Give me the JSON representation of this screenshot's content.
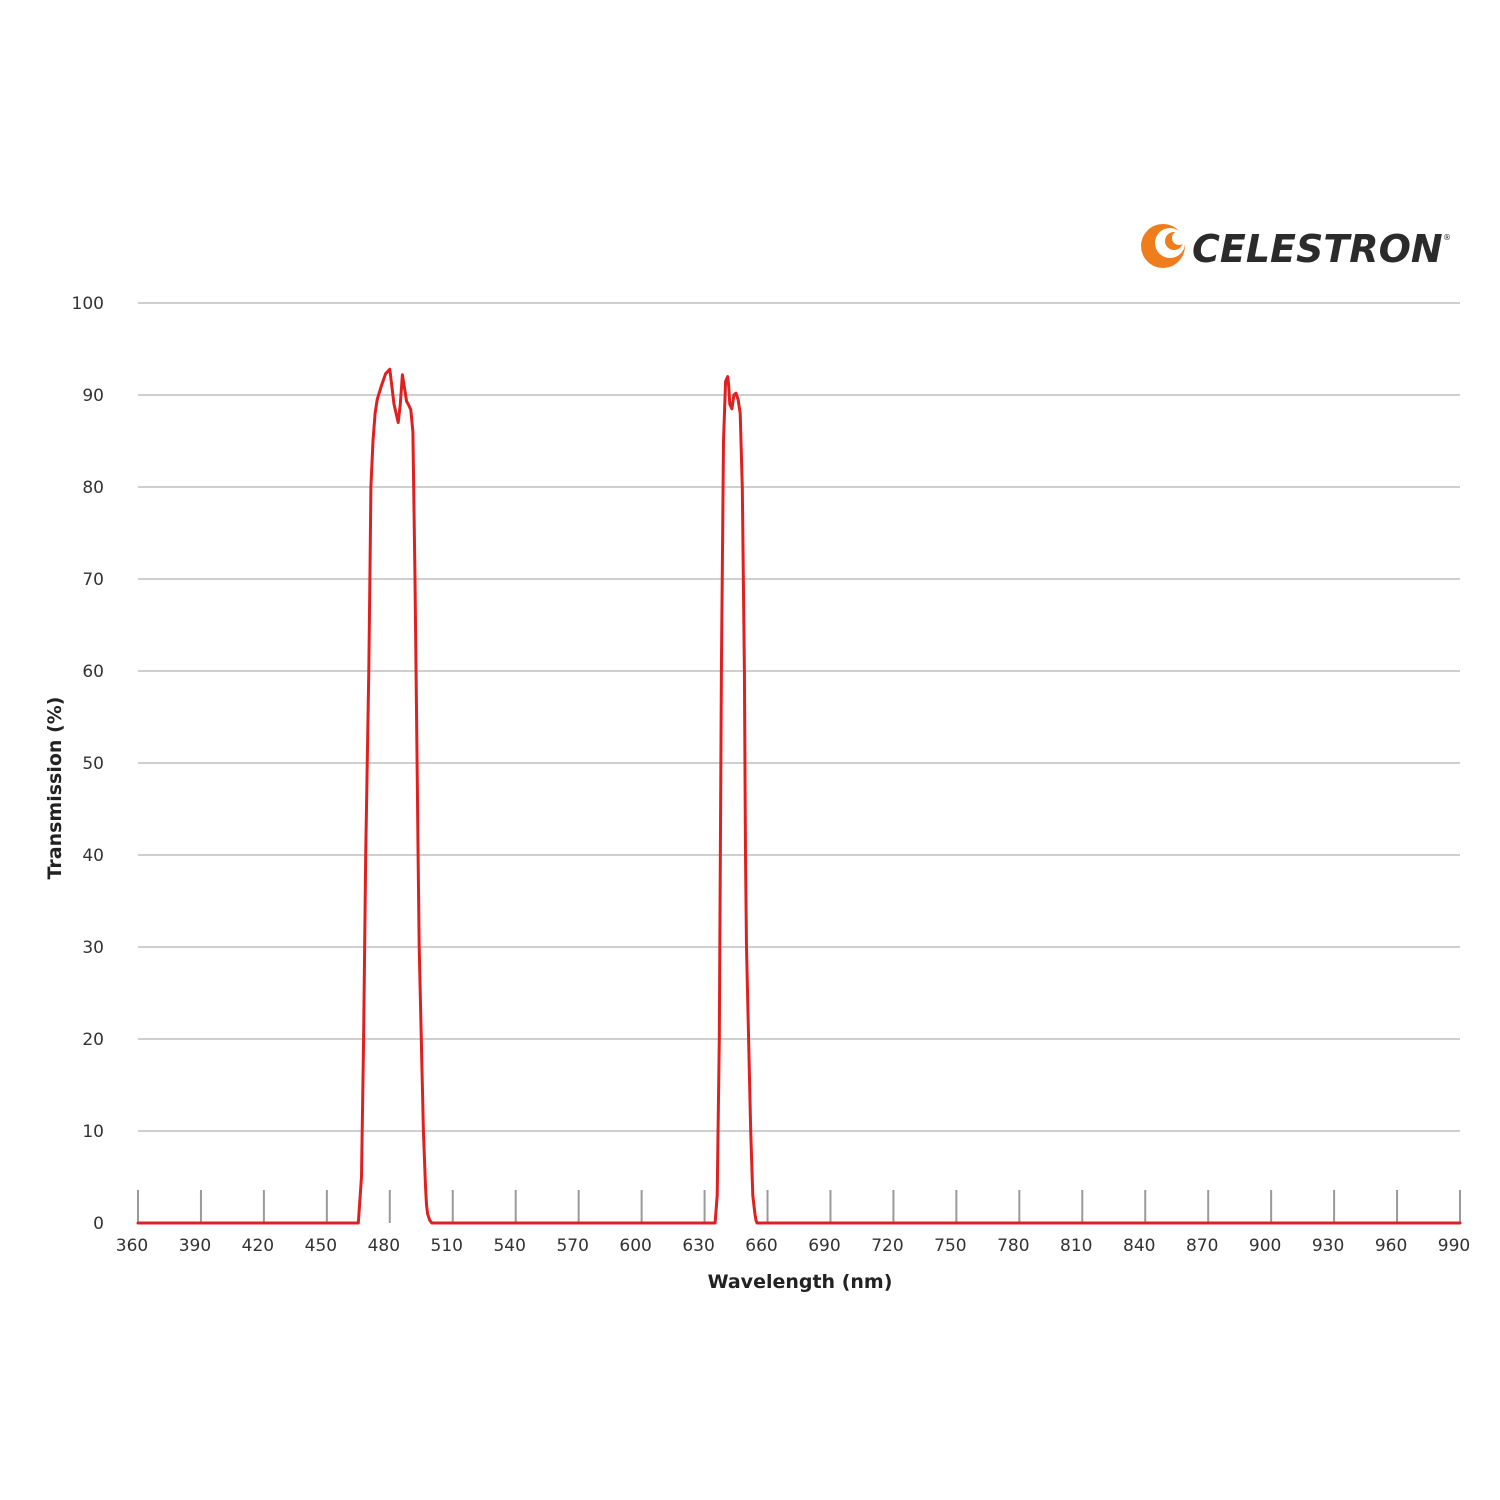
{
  "logo": {
    "text": "CELESTRON",
    "mark": "celestron-swoosh-icon",
    "mark_color": "#f07d1c"
  },
  "colors": {
    "line": "#e02020",
    "grid": "#cfcfcf",
    "tick": "#9a9a9a"
  },
  "chart_data": {
    "type": "line",
    "title": "",
    "xlabel": "Wavelength (nm)",
    "ylabel": "Transmission (%)",
    "xlim": [
      360,
      990
    ],
    "ylim": [
      0,
      100
    ],
    "xticks": [
      360,
      390,
      420,
      450,
      480,
      510,
      540,
      570,
      600,
      630,
      660,
      690,
      720,
      750,
      780,
      810,
      840,
      870,
      900,
      930,
      960,
      990
    ],
    "yticks": [
      0,
      10,
      20,
      30,
      40,
      50,
      60,
      70,
      80,
      90,
      100
    ],
    "grid": "horizontal",
    "legend": "none",
    "series": [
      {
        "color": "#e02020",
        "x": [
          360,
          465,
          466.5,
          467.5,
          468.5,
          470,
          470.5,
          471,
          472,
          473,
          474,
          476,
          478,
          480,
          482,
          484,
          485,
          486,
          488,
          489,
          490,
          491,
          492,
          493,
          493.5,
          494,
          495,
          496,
          497,
          497.5,
          498,
          499,
          500,
          501,
          502,
          503,
          503.5,
          504,
          505,
          506,
          508,
          509,
          510,
          511,
          515,
          635,
          636,
          637,
          638,
          639,
          640,
          641,
          641.5,
          642,
          643,
          644,
          645,
          646,
          647,
          648,
          649,
          649.5,
          650,
          651,
          652,
          653,
          654,
          654.5,
          655,
          656,
          657,
          658,
          660,
          662,
          664,
          665,
          990
        ],
        "y": [
          0,
          0,
          5,
          20,
          40,
          60,
          70,
          80,
          85,
          88,
          89.5,
          91,
          92.3,
          92.8,
          89,
          87,
          89,
          92.2,
          89.3,
          88.9,
          88.4,
          86,
          70,
          50,
          40,
          30,
          20,
          10,
          4,
          2,
          1,
          0.3,
          0,
          0,
          0,
          0,
          0,
          0,
          0,
          0,
          0,
          0,
          0,
          0,
          0,
          0,
          3,
          20,
          60,
          85,
          91.5,
          92,
          91,
          89,
          88.5,
          90,
          90.2,
          89.5,
          88,
          80,
          60,
          40,
          30,
          20,
          10,
          3,
          1,
          0.3,
          0,
          0,
          0,
          0,
          0,
          0,
          0,
          0,
          0
        ]
      }
    ]
  }
}
